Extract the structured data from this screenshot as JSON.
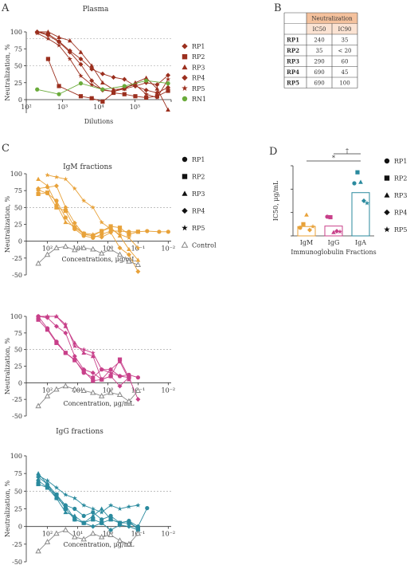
{
  "panels": {
    "A": "A",
    "B": "B",
    "C": "C",
    "D": "D"
  },
  "colors": {
    "RP": "#9b2f1e",
    "RN1": "#6aab3a",
    "igm": "#e8a23a",
    "igg": "#c8408a",
    "iga": "#2a8a9e",
    "control": "#888888",
    "table_header": "#f4c19d",
    "table_header2": "#fbe3d3"
  },
  "legend_A": [
    {
      "label": "RP1",
      "marker": "diamond"
    },
    {
      "label": "RP2",
      "marker": "square"
    },
    {
      "label": "RP3",
      "marker": "triangle"
    },
    {
      "label": "RP4",
      "marker": "diamond"
    },
    {
      "label": "RP5",
      "marker": "star"
    },
    {
      "label": "RN1",
      "marker": "circle"
    }
  ],
  "legend_C": [
    {
      "label": "RP1",
      "marker": "circle"
    },
    {
      "label": "RP2",
      "marker": "square"
    },
    {
      "label": "RP3",
      "marker": "triangle"
    },
    {
      "label": "RP4",
      "marker": "diamond"
    },
    {
      "label": "RP5",
      "marker": "star"
    },
    {
      "label": "Control",
      "marker": "open-triangle"
    }
  ],
  "legend_D": [
    {
      "label": "RP1",
      "marker": "circle"
    },
    {
      "label": "RP2",
      "marker": "square"
    },
    {
      "label": "RP3",
      "marker": "triangle"
    },
    {
      "label": "RP4",
      "marker": "diamond"
    },
    {
      "label": "RP5",
      "marker": "star"
    }
  ],
  "table": {
    "header": "Neutralization",
    "cols": [
      "IC50",
      "IC90"
    ],
    "rows": [
      {
        "name": "RP1",
        "ic50": "240",
        "ic90": "35"
      },
      {
        "name": "RP2",
        "ic50": "35",
        "ic90": "< 20"
      },
      {
        "name": "RP3",
        "ic50": "290",
        "ic90": "60"
      },
      {
        "name": "RP4",
        "ic50": "690",
        "ic90": "45"
      },
      {
        "name": "RP5",
        "ic50": "690",
        "ic90": "100"
      }
    ]
  },
  "chart_data": [
    {
      "id": "plasma",
      "type": "line",
      "title": "Plasma",
      "xlabel": "Dilutions",
      "ylabel": "Neutralization, %",
      "x_scale": "log",
      "xlim": [
        10,
        100000
      ],
      "ylim": [
        -20,
        100
      ],
      "yticks": [
        0,
        25,
        50,
        75,
        100
      ],
      "xtick_labels": [
        "10²",
        "10³",
        "10⁴",
        "10⁵"
      ],
      "ref_lines": [
        50,
        90
      ],
      "series": [
        {
          "name": "RP1",
          "marker": "diamond",
          "x": [
            20,
            40,
            80,
            160,
            320,
            640,
            1280,
            2560,
            5120,
            10240,
            20480,
            40960,
            81920
          ],
          "y": [
            100,
            97,
            86,
            72,
            60,
            45,
            38,
            33,
            30,
            20,
            14,
            10,
            18
          ]
        },
        {
          "name": "RP2",
          "marker": "square",
          "x": [
            40,
            80,
            320,
            640,
            1280,
            2560,
            5120,
            10240,
            20480,
            40960,
            81920
          ],
          "y": [
            60,
            20,
            5,
            2,
            -3,
            10,
            8,
            5,
            3,
            5,
            13
          ]
        },
        {
          "name": "RP3",
          "marker": "triangle",
          "x": [
            20,
            40,
            80,
            160,
            320,
            640,
            1280,
            2560,
            5120,
            10240,
            20480,
            40960,
            81920
          ],
          "y": [
            100,
            100,
            92,
            87,
            70,
            50,
            25,
            15,
            16,
            25,
            32,
            16,
            -15
          ]
        },
        {
          "name": "RP4",
          "marker": "diamond",
          "x": [
            20,
            40,
            80,
            160,
            320,
            640,
            1280,
            2560,
            5120,
            10240,
            20480,
            40960,
            81920
          ],
          "y": [
            100,
            95,
            85,
            70,
            52,
            28,
            14,
            12,
            16,
            20,
            25,
            22,
            36
          ]
        },
        {
          "name": "RP5",
          "marker": "star",
          "x": [
            20,
            40,
            80,
            160,
            320,
            640,
            1280,
            2560,
            5120,
            10240,
            20480,
            40960,
            81920
          ],
          "y": [
            98,
            90,
            80,
            60,
            35,
            22,
            15,
            12,
            18,
            22,
            8,
            3,
            30
          ]
        },
        {
          "name": "RN1",
          "marker": "circle",
          "x": [
            20,
            80,
            320,
            1280,
            5120,
            20480,
            81920
          ],
          "y": [
            15,
            8,
            24,
            15,
            20,
            28,
            24
          ]
        }
      ]
    },
    {
      "id": "igm",
      "type": "line",
      "title": "IgM fractions",
      "xlabel": "Concentrations, μg/mL",
      "ylabel": "Neutralization, %",
      "x_scale": "log",
      "x_reversed": true,
      "xlim": [
        500,
        0.008
      ],
      "ylim": [
        -50,
        100
      ],
      "yticks": [
        -50,
        -25,
        0,
        25,
        50,
        75,
        100
      ],
      "xtick_labels": [
        "10²",
        "10¹",
        "10⁰",
        "10⁻¹",
        "10⁻²"
      ],
      "ref_line": 50,
      "series": [
        {
          "name": "RP1",
          "marker": "circle",
          "x": [
            200,
            100,
            50,
            25,
            12.5,
            6.25,
            3.1,
            1.6,
            0.8,
            0.4,
            0.2,
            0.1,
            0.05,
            0.02,
            0.01
          ],
          "y": [
            76,
            71,
            60,
            35,
            18,
            8,
            5,
            10,
            15,
            15,
            14,
            14,
            15,
            14,
            14
          ]
        },
        {
          "name": "RP2",
          "marker": "square",
          "x": [
            200,
            100,
            50,
            25,
            12.5,
            6.25,
            3.1,
            1.6,
            0.8,
            0.4,
            0.2,
            0.1
          ],
          "y": [
            70,
            72,
            50,
            45,
            20,
            11,
            8,
            15,
            22,
            20,
            10,
            14
          ]
        },
        {
          "name": "RP3",
          "marker": "triangle",
          "x": [
            200,
            100,
            50,
            25,
            12.5,
            6.25,
            3.1,
            1.6,
            0.8,
            0.4,
            0.2,
            0.1
          ],
          "y": [
            92,
            82,
            55,
            28,
            22,
            12,
            10,
            15,
            20,
            8,
            -12,
            -28
          ]
        },
        {
          "name": "RP4",
          "marker": "diamond",
          "x": [
            200,
            100,
            50,
            25,
            12.5,
            6.25,
            3.1,
            1.6,
            0.8,
            0.4,
            0.2,
            0.1
          ],
          "y": [
            78,
            80,
            82,
            50,
            27,
            10,
            8,
            6,
            13,
            -10,
            -20,
            -45
          ]
        },
        {
          "name": "RP5",
          "marker": "star",
          "x": [
            100,
            50,
            25,
            12.5,
            6.25,
            3.1,
            1.6,
            0.8,
            0.4,
            0.2,
            0.1
          ],
          "y": [
            98,
            95,
            92,
            78,
            60,
            50,
            28,
            18,
            10,
            5,
            -10
          ]
        },
        {
          "name": "Control",
          "marker": "open-triangle",
          "x": [
            200,
            100,
            50,
            25,
            12.5,
            6.25,
            3.1,
            1.6,
            0.8,
            0.4,
            0.2,
            0.1
          ],
          "y": [
            -33,
            -20,
            -10,
            -8,
            -13,
            -10,
            -12,
            -18,
            -12,
            -20,
            -30,
            -35
          ]
        }
      ]
    },
    {
      "id": "igg",
      "type": "line",
      "title": "",
      "xlabel": "Concentration, μg/mL",
      "ylabel": "Neutralization, %",
      "x_scale": "log",
      "x_reversed": true,
      "xlim": [
        500,
        0.008
      ],
      "ylim": [
        -50,
        100
      ],
      "yticks": [
        -50,
        -25,
        0,
        25,
        50,
        75,
        100
      ],
      "xtick_labels": [
        "10²",
        "10¹",
        "10⁰",
        "10⁻¹",
        "10⁻²"
      ],
      "ref_line": 50,
      "series": [
        {
          "name": "RP1",
          "marker": "circle",
          "x": [
            200,
            100,
            50,
            25,
            12.5,
            6.25,
            3.1,
            1.6,
            0.8,
            0.4,
            0.2,
            0.1
          ],
          "y": [
            100,
            82,
            62,
            45,
            35,
            15,
            8,
            20,
            20,
            10,
            12,
            8
          ]
        },
        {
          "name": "RP2",
          "marker": "square",
          "x": [
            200,
            100,
            50,
            25,
            12.5,
            6.25,
            3.1,
            1.6,
            0.8,
            0.4,
            0.2
          ],
          "y": [
            95,
            80,
            60,
            45,
            34,
            18,
            3,
            5,
            10,
            35,
            8
          ]
        },
        {
          "name": "RP3",
          "marker": "triangle",
          "x": [
            200,
            100,
            50,
            25,
            12.5,
            6.25,
            3.1,
            1.6,
            0.8,
            0.4,
            0.2
          ],
          "y": [
            100,
            100,
            100,
            85,
            60,
            45,
            40,
            5,
            20,
            32,
            5
          ]
        },
        {
          "name": "RP4",
          "marker": "diamond",
          "x": [
            200,
            100,
            50,
            25,
            12.5,
            6.25,
            3.1,
            1.6,
            0.8,
            0.4,
            0.2,
            0.1
          ],
          "y": [
            100,
            98,
            85,
            75,
            40,
            20,
            15,
            5,
            10,
            -5,
            8,
            -25
          ]
        },
        {
          "name": "RP5",
          "marker": "star",
          "x": [
            200,
            100,
            50,
            25,
            12.5,
            6.25,
            3.1,
            1.6,
            0.8,
            0.4,
            0.2
          ],
          "y": [
            100,
            100,
            100,
            88,
            55,
            50,
            45,
            20,
            15,
            10,
            8
          ]
        },
        {
          "name": "Control",
          "marker": "open-triangle",
          "x": [
            200,
            100,
            50,
            25,
            12.5,
            6.25,
            3.1,
            1.6,
            0.8,
            0.4,
            0.2,
            0.1
          ],
          "y": [
            -35,
            -20,
            -10,
            -5,
            -10,
            -12,
            -15,
            -20,
            -15,
            -18,
            -28,
            -12
          ]
        }
      ]
    },
    {
      "id": "iga",
      "type": "line",
      "title": "IgG fractions",
      "xlabel": "Concentration, μg/mL",
      "ylabel": "Neutralization, %",
      "x_scale": "log",
      "x_reversed": true,
      "xlim": [
        500,
        0.008
      ],
      "ylim": [
        -50,
        100
      ],
      "yticks": [
        -50,
        -25,
        0,
        25,
        50,
        75,
        100
      ],
      "xtick_labels": [
        "10²",
        "10¹",
        "10⁰",
        "10⁻¹",
        "10⁻²"
      ],
      "ref_line": 50,
      "series": [
        {
          "name": "RP1",
          "marker": "circle",
          "x": [
            200,
            100,
            50,
            25,
            12.5,
            6.25,
            3.1,
            1.6,
            0.8,
            0.4,
            0.2,
            0.1,
            0.05
          ],
          "y": [
            65,
            55,
            40,
            30,
            25,
            15,
            20,
            10,
            15,
            5,
            8,
            0,
            26
          ]
        },
        {
          "name": "RP2",
          "marker": "square",
          "x": [
            200,
            100,
            50,
            25,
            12.5,
            6.25,
            3.1,
            1.6,
            0.8,
            0.4,
            0.2,
            0.1
          ],
          "y": [
            60,
            55,
            45,
            25,
            10,
            5,
            10,
            5,
            10,
            5,
            5,
            -2
          ]
        },
        {
          "name": "RP3",
          "marker": "triangle",
          "x": [
            200,
            100,
            50,
            25,
            12.5,
            6.25,
            3.1,
            1.6,
            0.8,
            0.4,
            0.2,
            0.1
          ],
          "y": [
            75,
            60,
            40,
            20,
            15,
            5,
            15,
            25,
            10,
            5,
            8,
            -5
          ]
        },
        {
          "name": "RP4",
          "marker": "diamond",
          "x": [
            200,
            100,
            50,
            25,
            12.5,
            6.25,
            3.1,
            1.6,
            0.8,
            0.4,
            0.2,
            0.1
          ],
          "y": [
            70,
            60,
            45,
            30,
            10,
            5,
            0,
            5,
            -5,
            2,
            0,
            -5
          ]
        },
        {
          "name": "RP5",
          "marker": "star",
          "x": [
            200,
            100,
            50,
            25,
            12.5,
            6.25,
            3.1,
            1.6,
            0.8,
            0.4,
            0.2,
            0.1
          ],
          "y": [
            72,
            65,
            55,
            45,
            40,
            30,
            25,
            20,
            30,
            25,
            28,
            30
          ]
        },
        {
          "name": "Control",
          "marker": "open-triangle",
          "x": [
            200,
            100,
            50,
            25,
            12.5,
            6.25,
            3.1,
            1.6,
            0.8,
            0.4,
            0.2,
            0.1
          ],
          "y": [
            -35,
            -22,
            -10,
            -5,
            -15,
            -18,
            -10,
            -15,
            -12,
            -20,
            -25,
            -10
          ]
        }
      ]
    },
    {
      "id": "ic50_bar",
      "type": "bar",
      "title": "",
      "xlabel": "Immunoglobulin Fractions",
      "ylabel": "IC50, μg/mL",
      "categories": [
        "IgM",
        "IgG",
        "IgA"
      ],
      "values": [
        40,
        42,
        185
      ],
      "ylim": [
        0,
        300
      ],
      "yticks": [
        0,
        100,
        200,
        300
      ],
      "points": {
        "IgM": [
          {
            "s": "RP1",
            "v": 35
          },
          {
            "s": "RP2",
            "v": 50
          },
          {
            "s": "RP3",
            "v": 90
          },
          {
            "s": "RP4",
            "v": 25
          },
          {
            "s": "RP5",
            "v": 40
          }
        ],
        "IgG": [
          {
            "s": "RP1",
            "v": 82
          },
          {
            "s": "RP2",
            "v": 80
          },
          {
            "s": "RP3",
            "v": 15
          },
          {
            "s": "RP4",
            "v": 20
          },
          {
            "s": "RP5",
            "v": 18
          }
        ],
        "IgA": [
          {
            "s": "RP1",
            "v": 225
          },
          {
            "s": "RP2",
            "v": 272
          },
          {
            "s": "RP3",
            "v": 230
          },
          {
            "s": "RP4",
            "v": 150
          },
          {
            "s": "RP5",
            "v": 140
          }
        ]
      },
      "significance": [
        {
          "from": "IgM",
          "to": "IgA",
          "label": "*"
        },
        {
          "from": "IgG",
          "to": "IgA",
          "label": "†"
        }
      ]
    }
  ]
}
